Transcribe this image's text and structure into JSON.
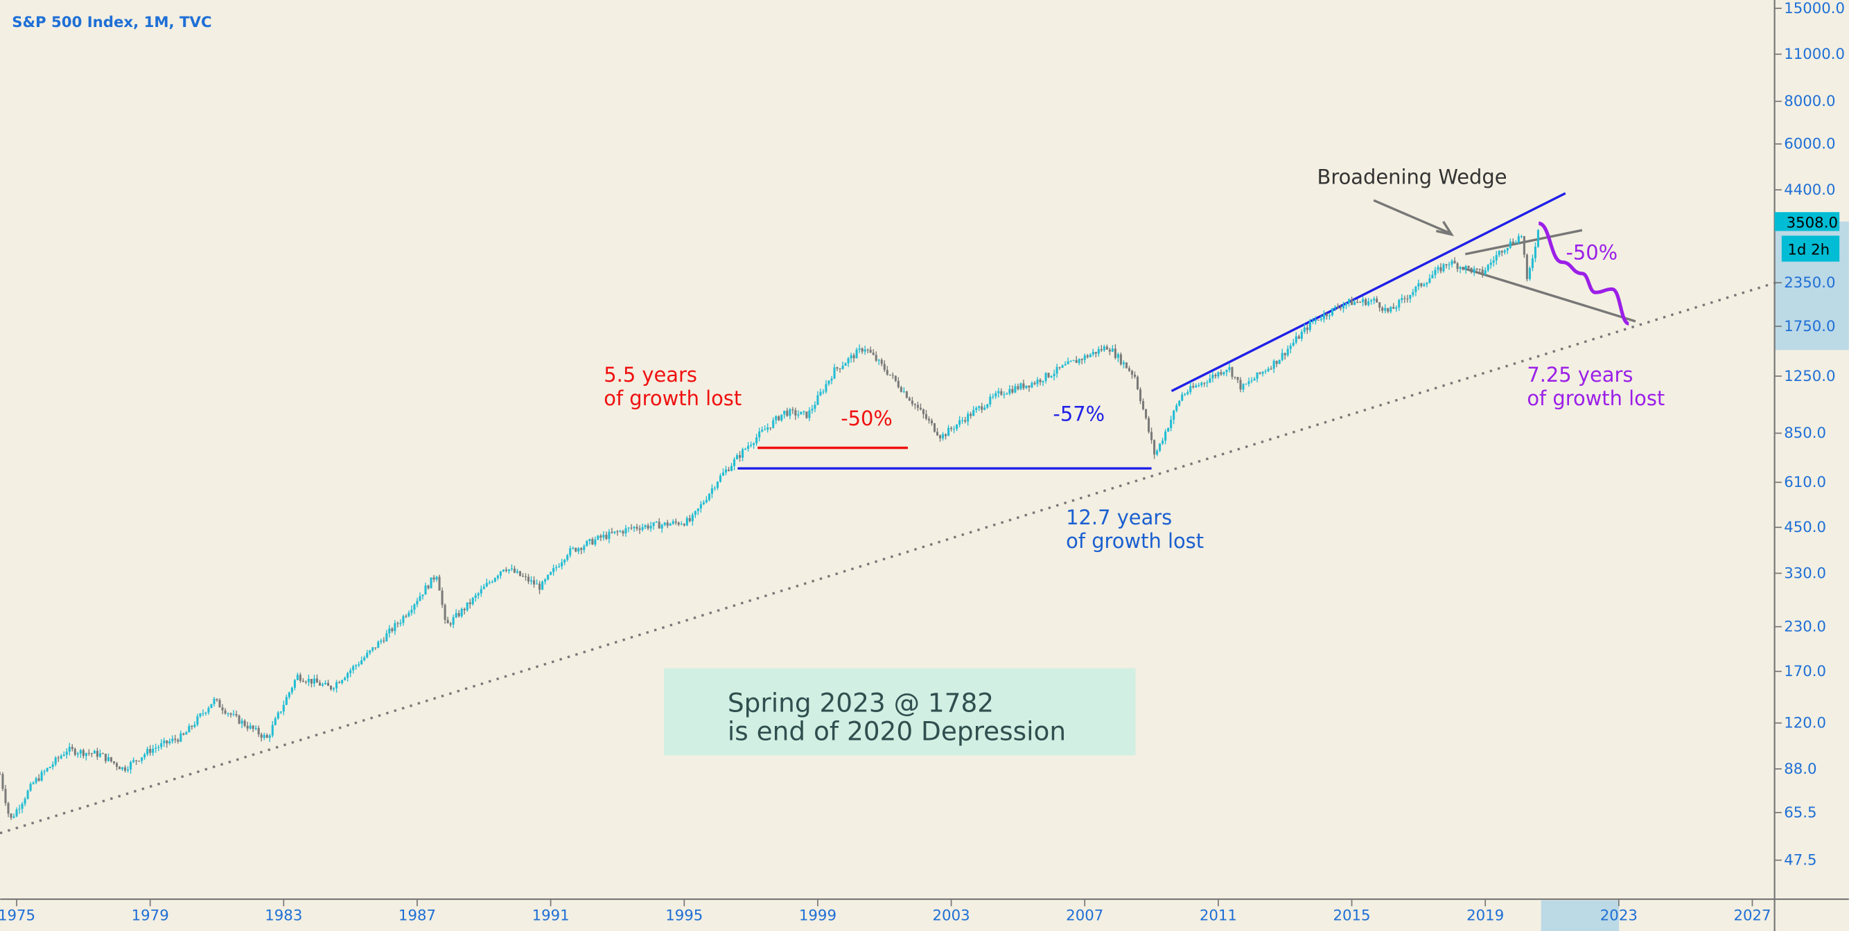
{
  "header": {
    "title": "S&P 500 Index, 1M, TVC"
  },
  "price_label": {
    "value": "3508.0",
    "countdown": "1d 2h"
  },
  "colors": {
    "up": "#22bcd4",
    "down": "#7a7a7a",
    "red": "#f01010",
    "blue": "#1f1fe8",
    "purple": "#9b1fe8",
    "axis": "#1e6fd6",
    "bg": "#f3efe2"
  },
  "chart_data": {
    "type": "candlestick",
    "title": "S&P 500 Index, 1M, TVC",
    "y_scale": "log",
    "ylim": [
      40,
      17000
    ],
    "xlim": [
      1974.5,
      2027.7
    ],
    "y_ticks": [
      "15000.0",
      "11000.0",
      "8000.0",
      "6000.0",
      "4400.0",
      "2350.0",
      "1750.0",
      "1250.0",
      "850.0",
      "610.0",
      "450.0",
      "330.0",
      "230.0",
      "170.0",
      "120.0",
      "88.0",
      "65.5",
      "47.5"
    ],
    "x_ticks": [
      "1975",
      "1979",
      "1983",
      "1987",
      "1991",
      "1995",
      "1999",
      "2003",
      "2007",
      "2011",
      "2015",
      "2019",
      "2023",
      "2027"
    ],
    "series_keypoints": [
      [
        1974.5,
        85
      ],
      [
        1974.8,
        62
      ],
      [
        1975.5,
        80
      ],
      [
        1976.5,
        100
      ],
      [
        1977.5,
        97
      ],
      [
        1978.2,
        88
      ],
      [
        1979,
        100
      ],
      [
        1980,
        110
      ],
      [
        1980.9,
        140
      ],
      [
        1981.5,
        125
      ],
      [
        1982.5,
        108
      ],
      [
        1983.4,
        165
      ],
      [
        1984.4,
        152
      ],
      [
        1985.5,
        190
      ],
      [
        1986.5,
        240
      ],
      [
        1987.6,
        330
      ],
      [
        1987.85,
        230
      ],
      [
        1988.5,
        265
      ],
      [
        1989.6,
        345
      ],
      [
        1990.7,
        300
      ],
      [
        1991.5,
        380
      ],
      [
        1992.5,
        420
      ],
      [
        1993.5,
        450
      ],
      [
        1994.5,
        460
      ],
      [
        1995.2,
        470
      ],
      [
        1996,
        620
      ],
      [
        1997,
        800
      ],
      [
        1998,
        980
      ],
      [
        1998.7,
        960
      ],
      [
        1999.5,
        1300
      ],
      [
        2000.4,
        1520
      ],
      [
        2001.2,
        1250
      ],
      [
        2002.7,
        830
      ],
      [
        2003.4,
        940
      ],
      [
        2004.5,
        1120
      ],
      [
        2005.5,
        1200
      ],
      [
        2006.5,
        1350
      ],
      [
        2007.7,
        1530
      ],
      [
        2008.5,
        1250
      ],
      [
        2009.1,
        730
      ],
      [
        2009.9,
        1100
      ],
      [
        2011.3,
        1330
      ],
      [
        2011.7,
        1150
      ],
      [
        2012.8,
        1400
      ],
      [
        2013.8,
        1800
      ],
      [
        2014.8,
        2050
      ],
      [
        2015.7,
        2080
      ],
      [
        2016.1,
        1920
      ],
      [
        2016.9,
        2250
      ],
      [
        2017.9,
        2700
      ],
      [
        2018.9,
        2500
      ],
      [
        2019.5,
        2950
      ],
      [
        2020.1,
        3250
      ],
      [
        2020.25,
        2350
      ],
      [
        2020.6,
        3400
      ]
    ],
    "projection_keypoints": [
      [
        2020.6,
        3508
      ],
      [
        2021.3,
        2700
      ],
      [
        2021.9,
        2500
      ],
      [
        2022.3,
        2200
      ],
      [
        2022.8,
        2250
      ],
      [
        2023.3,
        1782
      ]
    ],
    "trendlines": [
      {
        "name": "dotted-support",
        "from": [
          1974.5,
          57
        ],
        "to": [
          2027.7,
          2350
        ],
        "style": "dotted"
      },
      {
        "name": "upper-channel",
        "from": [
          2009.6,
          1130
        ],
        "to": [
          2021.4,
          4300
        ],
        "color": "blue"
      },
      {
        "name": "wedge-upper",
        "from": [
          2018.4,
          2850
        ],
        "to": [
          2021.9,
          3350
        ]
      },
      {
        "name": "wedge-lower",
        "from": [
          2018.3,
          2600
        ],
        "to": [
          2023.5,
          1810
        ]
      },
      {
        "name": "1997-level",
        "from": [
          1997.2,
          770
        ],
        "to": [
          2001.7,
          770
        ],
        "color": "red"
      },
      {
        "name": "1996-level",
        "from": [
          1996.6,
          670
        ],
        "to": [
          2009.0,
          670
        ],
        "color": "blue"
      }
    ]
  },
  "annotations": {
    "red_years": [
      "5.5 years",
      "of growth lost"
    ],
    "red_pct": "-50%",
    "blue_pct": "-57%",
    "blue_years": [
      "12.7 years",
      "of growth lost"
    ],
    "wedge": "Broadening Wedge",
    "purple_pct": "-50%",
    "purple_years": [
      "7.25 years",
      "of growth lost"
    ],
    "box": [
      "Spring 2023 @ 1782",
      "is end of 2020 Depression"
    ]
  }
}
